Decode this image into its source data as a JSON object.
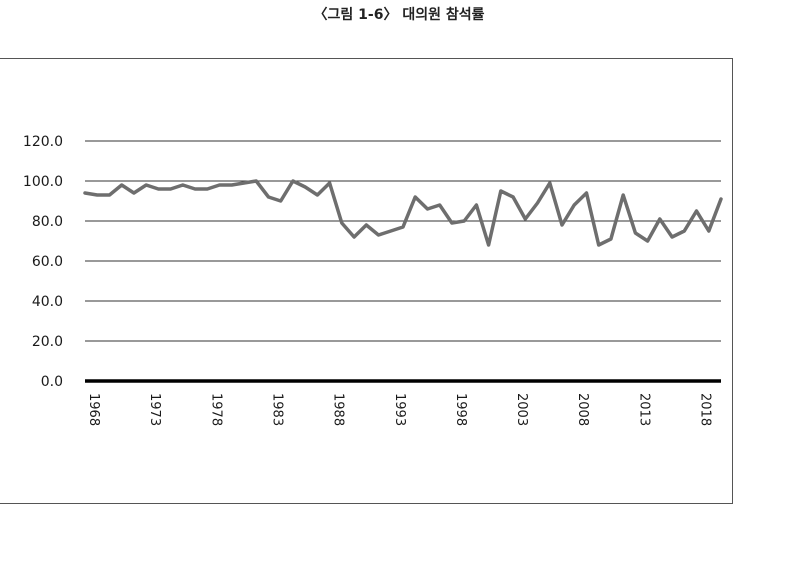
{
  "caption": "〈그림 1-6〉 대의원 참석률",
  "chart_data": {
    "type": "line",
    "title": "〈그림 1-6〉 대의원 참석률",
    "xlabel": "",
    "ylabel": "",
    "xlim": [
      1968,
      2020
    ],
    "ylim": [
      0,
      120
    ],
    "grid": true,
    "legend": "none",
    "y_ticks": [
      "0.0",
      "20.0",
      "40.0",
      "60.0",
      "80.0",
      "100.0",
      "120.0"
    ],
    "x_ticks": [
      "1968",
      "1973",
      "1978",
      "1983",
      "1988",
      "1993",
      "1998",
      "2003",
      "2008",
      "2013",
      "2018"
    ],
    "line_color": "#6e6e6e",
    "series": [
      {
        "x": [
          1968,
          1969,
          1970,
          1971,
          1972,
          1973,
          1974,
          1975,
          1976,
          1977,
          1978,
          1979,
          1980,
          1981,
          1982,
          1983,
          1984,
          1985,
          1986,
          1987,
          1988,
          1989,
          1990,
          1991,
          1992,
          1993,
          1994,
          1995,
          1996,
          1997,
          1998,
          1999,
          2000,
          2001,
          2002,
          2003,
          2004,
          2005,
          2006,
          2007,
          2008,
          2009,
          2010,
          2011,
          2012,
          2013,
          2014,
          2015,
          2016,
          2017,
          2018,
          2019,
          2020
        ],
        "values": [
          94,
          93,
          93,
          98,
          94,
          98,
          96,
          96,
          98,
          96,
          96,
          98,
          98,
          99,
          100,
          92,
          90,
          100,
          97,
          93,
          99,
          79,
          72,
          78,
          73,
          75,
          77,
          92,
          86,
          88,
          79,
          80,
          88,
          68,
          95,
          92,
          81,
          89,
          99,
          78,
          88,
          94,
          68,
          71,
          93,
          74,
          70,
          81,
          72,
          75,
          85,
          75,
          91
        ]
      }
    ]
  }
}
